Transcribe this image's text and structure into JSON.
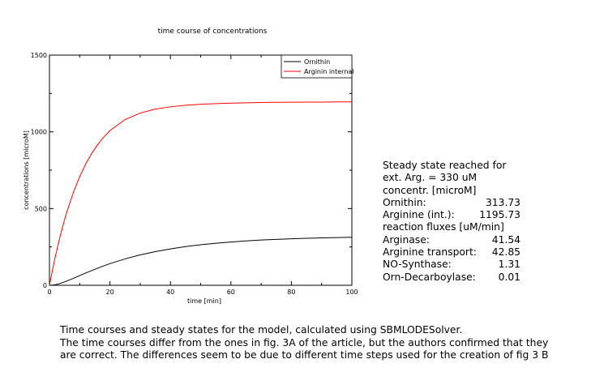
{
  "chart_data": {
    "type": "line",
    "title": "time course of concentrations",
    "xlabel": "time [min]",
    "ylabel": "concentrations [microM]",
    "xlim": [
      0,
      100
    ],
    "ylim": [
      0,
      1500
    ],
    "x_ticks": [
      "0",
      "20",
      "40",
      "60",
      "80",
      "100"
    ],
    "y_ticks": [
      "0",
      "500",
      "1000",
      "1500"
    ],
    "grid": false,
    "legend_position": "top-right",
    "x": [
      0,
      1,
      2,
      3,
      4,
      5,
      6,
      8,
      10,
      12,
      14,
      16,
      18,
      20,
      25,
      30,
      35,
      40,
      45,
      50,
      55,
      60,
      65,
      70,
      75,
      80,
      85,
      90,
      95,
      100
    ],
    "series": [
      {
        "name": "Ornithin",
        "color": "#000000",
        "values": [
          0,
          1,
          4,
          9,
          15,
          22,
          30,
          46,
          63,
          80,
          96,
          112,
          127,
          141,
          172,
          198,
          219,
          237,
          252,
          264,
          274,
          282,
          289,
          295,
          299,
          303,
          306,
          309,
          311,
          313
        ]
      },
      {
        "name": "Arginin internal",
        "color": "#ff0000",
        "values": [
          0,
          100,
          192,
          277,
          355,
          427,
          493,
          610,
          708,
          791,
          860,
          918,
          967,
          1008,
          1080,
          1122,
          1148,
          1163,
          1173,
          1180,
          1184,
          1187,
          1189,
          1191,
          1192,
          1193,
          1194,
          1194,
          1195,
          1195
        ]
      }
    ]
  },
  "steady_state": {
    "heading": "Steady state reached for",
    "ext_arg": "ext. Arg. = 330 uM",
    "conc_heading": "concentr. [microM]",
    "concentrations": [
      {
        "label": "Ornithin:",
        "value": "313.73"
      },
      {
        "label": "Arginine (int.):",
        "value": "1195.73"
      }
    ],
    "flux_heading": "reaction fluxes [uM/min]",
    "fluxes": [
      {
        "label": "Arginase:",
        "value": "41.54"
      },
      {
        "label": "Arginine transport:",
        "value": "42.85"
      },
      {
        "label": "NO-Synthase:",
        "value": "1.31"
      },
      {
        "label": "Orn-Decarboylase:",
        "value": "0.01"
      }
    ]
  },
  "caption": {
    "line1": "Time courses and steady states for the model, calculated using SBMLODESolver.",
    "line2": "The time courses differ from the ones in fig. 3A of the article, but the authors confirmed that they",
    "line3": "are correct. The differences seem to be due to different time steps used for the creation of fig 3 B"
  }
}
